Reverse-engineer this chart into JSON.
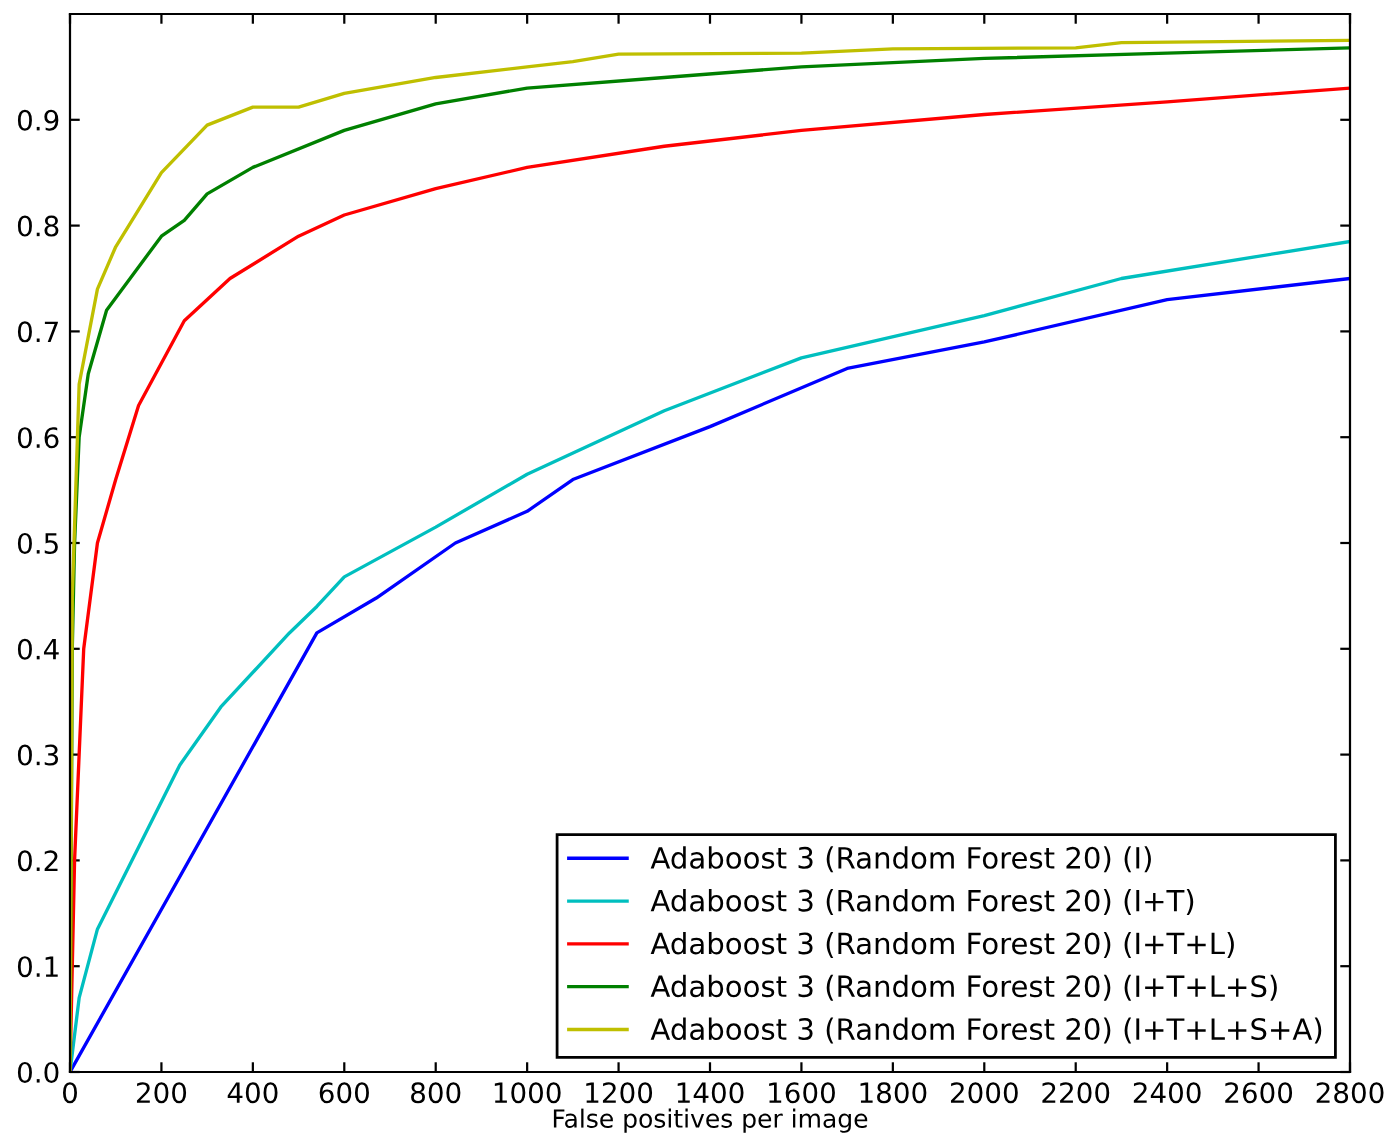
{
  "chart_data": {
    "type": "line",
    "xlabel": "False positives per image",
    "xlim": [
      0,
      2800
    ],
    "ylim": [
      0,
      1.0
    ],
    "xticks": [
      0,
      200,
      400,
      600,
      800,
      1000,
      1200,
      1400,
      1600,
      1800,
      2000,
      2200,
      2400,
      2600,
      2800
    ],
    "yticks": [
      {
        "value": 0,
        "label": "0.0"
      },
      0.1,
      0.2,
      0.3,
      0.4,
      0.5,
      0.6,
      0.7,
      0.8,
      0.9
    ],
    "legend": "bottom right",
    "grid": false,
    "marker": "none",
    "line_style": "solid",
    "series": [
      {
        "name": "Adaboost 3 (Random Forest 20) (I)",
        "color": "#0000ff",
        "x": [
          0,
          540,
          670,
          843,
          1000,
          1100,
          1400,
          1700,
          2000,
          2400,
          2800
        ],
        "values": [
          0,
          0.415,
          0.448,
          0.5,
          0.53,
          0.56,
          0.61,
          0.665,
          0.69,
          0.73,
          0.75
        ]
      },
      {
        "name": "Adaboost 3 (Random Forest 20) (I+T)",
        "color": "#00bfbf",
        "x": [
          0,
          20,
          60,
          240,
          330,
          480,
          540,
          600,
          800,
          1000,
          1300,
          1600,
          2000,
          2300,
          2800
        ],
        "values": [
          0,
          0.07,
          0.135,
          0.29,
          0.345,
          0.415,
          0.44,
          0.468,
          0.515,
          0.565,
          0.625,
          0.675,
          0.715,
          0.75,
          0.785
        ]
      },
      {
        "name": "Adaboost 3 (Random Forest 20) (I+T+L)",
        "color": "#ff0000",
        "x": [
          0,
          10,
          30,
          60,
          100,
          150,
          250,
          350,
          500,
          600,
          800,
          1000,
          1300,
          1600,
          2000,
          2400,
          2800
        ],
        "values": [
          0,
          0.2,
          0.4,
          0.5,
          0.56,
          0.63,
          0.71,
          0.75,
          0.79,
          0.81,
          0.835,
          0.855,
          0.875,
          0.89,
          0.905,
          0.917,
          0.93
        ]
      },
      {
        "name": "Adaboost 3 (Random Forest 20) (I+T+L+S)",
        "color": "#008000",
        "x": [
          0,
          5,
          10,
          20,
          40,
          80,
          200,
          250,
          300,
          400,
          600,
          800,
          1000,
          1300,
          1600,
          2000,
          2400,
          2800
        ],
        "values": [
          0,
          0.4,
          0.5,
          0.6,
          0.66,
          0.72,
          0.79,
          0.805,
          0.83,
          0.855,
          0.89,
          0.915,
          0.93,
          0.94,
          0.95,
          0.958,
          0.963,
          0.968
        ]
      },
      {
        "name": "Adaboost 3 (Random Forest 20) (I+T+L+S+A)",
        "color": "#bfbf00",
        "x": [
          0,
          5,
          20,
          60,
          100,
          200,
          300,
          400,
          500,
          600,
          800,
          1000,
          1100,
          1200,
          1600,
          1800,
          2200,
          2300,
          2800
        ],
        "values": [
          0,
          0.45,
          0.65,
          0.74,
          0.78,
          0.85,
          0.895,
          0.912,
          0.912,
          0.925,
          0.94,
          0.95,
          0.955,
          0.962,
          0.963,
          0.967,
          0.968,
          0.973,
          0.975
        ]
      }
    ]
  }
}
